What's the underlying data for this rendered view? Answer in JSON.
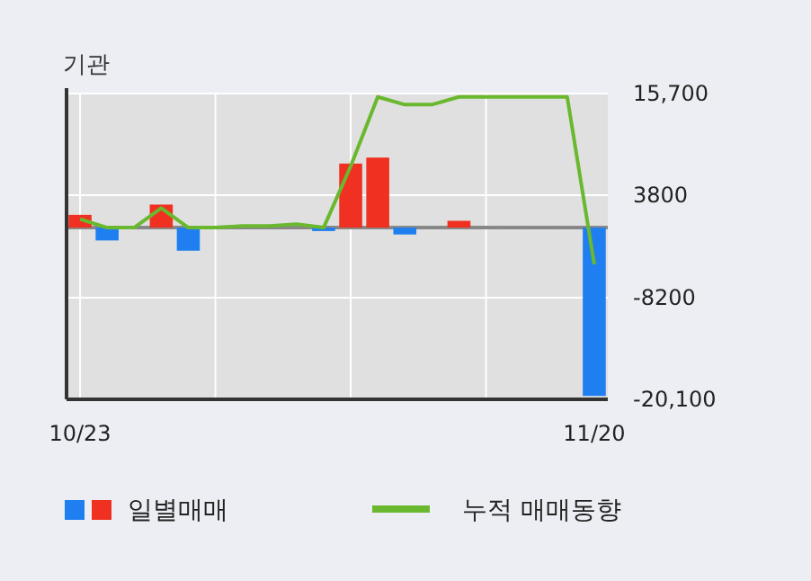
{
  "chart_data": {
    "type": "bar",
    "title": "기관",
    "categories": [
      "10/23",
      null,
      null,
      null,
      null,
      null,
      null,
      null,
      null,
      null,
      null,
      null,
      null,
      null,
      null,
      null,
      null,
      null,
      null,
      "11/20"
    ],
    "series": [
      {
        "name": "일별매매",
        "values": [
          1500,
          -1500,
          0,
          2700,
          -2700,
          0,
          0,
          0,
          0,
          -400,
          7500,
          8200,
          -800,
          0,
          800,
          0,
          0,
          0,
          0,
          -19700
        ],
        "colors": [
          "#f03020",
          "#1f7ff0",
          "#f03020",
          "#f03020",
          "#1f7ff0",
          "#f03020",
          "#f03020",
          "#f03020",
          "#f03020",
          "#1f7ff0",
          "#f03020",
          "#f03020",
          "#1f7ff0",
          "#f03020",
          "#f03020",
          "#f03020",
          "#f03020",
          "#f03020",
          "#f03020",
          "#1f7ff0"
        ]
      },
      {
        "name": "누적 매매동향",
        "type": "line",
        "color": "#6ab82e",
        "values": [
          1000,
          0,
          0,
          2300,
          0,
          0,
          200,
          200,
          400,
          0,
          7200,
          15300,
          14400,
          14400,
          15300,
          15300,
          15300,
          15300,
          15300,
          -4300
        ]
      }
    ],
    "ylim": [
      -20100,
      15700
    ],
    "yticks": [
      {
        "value": 15700,
        "label": "15,700"
      },
      3800,
      -8200,
      {
        "value": -20100,
        "label": "-20,100"
      }
    ],
    "ref_lines": [
      {
        "axis": "y",
        "value": 0,
        "color": "#888888"
      }
    ],
    "grid": true,
    "legend": "bottom"
  }
}
